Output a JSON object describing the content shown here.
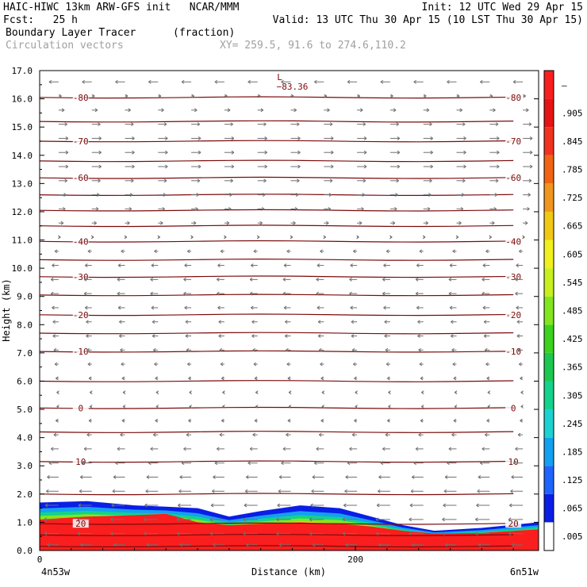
{
  "header": {
    "line1_left": "HAIC-HIWC 13km ARW-GFS init   NCAR/MMM",
    "line1_right": "Init: 12 UTC Wed 29 Apr 15",
    "line2_left": "Fcst:   25 h",
    "line2_right": "Valid: 13 UTC Thu 30 Apr 15 (10 LST Thu 30 Apr 15)",
    "line3_left": "Boundary Layer Tracer",
    "line3_mid": "(fraction)",
    "line4_left": "Circulation vectors",
    "line4_mid": "XY= 259.5, 91.6 to 274.6,110.2"
  },
  "chart_data": {
    "type": "heatmap",
    "title": "Boundary Layer Tracer",
    "units": "(fraction)",
    "xlabel": "Distance (km)",
    "ylabel": "Height (km)",
    "xlim": [
      0,
      316
    ],
    "ylim": [
      0,
      17
    ],
    "x_ticks": [
      "0",
      "200"
    ],
    "x_tick_values": [
      0,
      200
    ],
    "x_end_labels": [
      "4n53w",
      "6n51w"
    ],
    "y_ticks": [
      "0.0",
      "1.0",
      "2.0",
      "3.0",
      "4.0",
      "5.0",
      "6.0",
      "7.0",
      "8.0",
      "9.0",
      "10.0",
      "11.0",
      "12.0",
      "13.0",
      "14.0",
      "15.0",
      "16.0",
      "17.0"
    ],
    "colorbar_labels": [
      ".005",
      ".065",
      ".125",
      ".185",
      ".245",
      ".305",
      ".365",
      ".425",
      ".485",
      ".545",
      ".605",
      ".665",
      ".725",
      ".785",
      ".845",
      ".905",
      "–"
    ],
    "colorbar_colors": [
      "#ffffff",
      "#0a1ee6",
      "#1e64ff",
      "#14a0f0",
      "#1ed2d2",
      "#14d28c",
      "#1ec850",
      "#3cd21e",
      "#82e61e",
      "#c8f01e",
      "#f0f01e",
      "#f0c814",
      "#f0961e",
      "#f06414",
      "#f0321e",
      "#e61414",
      "#fa1e1e"
    ],
    "tracer_profile": [
      {
        "x": 0,
        "top": 1.7,
        "core": 1.1
      },
      {
        "x": 30,
        "top": 1.75,
        "core": 1.2
      },
      {
        "x": 60,
        "top": 1.6,
        "core": 1.25
      },
      {
        "x": 80,
        "top": 1.55,
        "core": 1.3
      },
      {
        "x": 100,
        "top": 1.5,
        "core": 1.0
      },
      {
        "x": 120,
        "top": 1.2,
        "core": 0.9
      },
      {
        "x": 140,
        "top": 1.4,
        "core": 0.95
      },
      {
        "x": 165,
        "top": 1.6,
        "core": 1.0
      },
      {
        "x": 190,
        "top": 1.5,
        "core": 0.95
      },
      {
        "x": 210,
        "top": 1.2,
        "core": 0.85
      },
      {
        "x": 230,
        "top": 0.9,
        "core": 0.7
      },
      {
        "x": 250,
        "top": 0.7,
        "core": 0.6
      },
      {
        "x": 280,
        "top": 0.8,
        "core": 0.62
      },
      {
        "x": 316,
        "top": 1.0,
        "core": 0.75
      }
    ],
    "isotherms": [
      {
        "height": 16.05,
        "label": "-80"
      },
      {
        "height": 15.2,
        "label": ""
      },
      {
        "height": 14.5,
        "label": "-70"
      },
      {
        "height": 13.8,
        "label": ""
      },
      {
        "height": 13.2,
        "label": "-60"
      },
      {
        "height": 12.6,
        "label": ""
      },
      {
        "height": 12.05,
        "label": ""
      },
      {
        "height": 11.5,
        "label": ""
      },
      {
        "height": 10.95,
        "label": "-40"
      },
      {
        "height": 10.3,
        "label": ""
      },
      {
        "height": 9.7,
        "label": "-30"
      },
      {
        "height": 9.05,
        "label": ""
      },
      {
        "height": 8.35,
        "label": "-20"
      },
      {
        "height": 7.7,
        "label": ""
      },
      {
        "height": 7.05,
        "label": "-10"
      },
      {
        "height": 6.0,
        "label": ""
      },
      {
        "height": 5.05,
        "label": "0"
      },
      {
        "height": 4.2,
        "label": ""
      },
      {
        "height": 3.15,
        "label": "10"
      },
      {
        "height": 2.0,
        "label": ""
      },
      {
        "height": 0.95,
        "label": "20"
      },
      {
        "height": 0.55,
        "label": ""
      },
      {
        "height": 0.15,
        "label": ""
      }
    ],
    "min_label": {
      "text": "−83.36",
      "x": 152,
      "height": 16.6,
      "marker": "L"
    },
    "wind_rows": [
      {
        "height": 16.6,
        "u": -1.0
      },
      {
        "height": 16.1,
        "u": 0.3
      },
      {
        "height": 15.6,
        "u": 0.6
      },
      {
        "height": 15.1,
        "u": 0.9
      },
      {
        "height": 14.6,
        "u": 1.0
      },
      {
        "height": 14.1,
        "u": 1.0
      },
      {
        "height": 13.6,
        "u": 1.0
      },
      {
        "height": 13.1,
        "u": 0.9
      },
      {
        "height": 12.6,
        "u": 0.8
      },
      {
        "height": 12.1,
        "u": 0.7
      },
      {
        "height": 11.6,
        "u": 0.5
      },
      {
        "height": 11.1,
        "u": 0.2
      },
      {
        "height": 10.6,
        "u": -0.4
      },
      {
        "height": 10.1,
        "u": -0.7
      },
      {
        "height": 9.6,
        "u": -0.8
      },
      {
        "height": 9.1,
        "u": -0.8
      },
      {
        "height": 8.6,
        "u": -0.7
      },
      {
        "height": 8.1,
        "u": -0.6
      },
      {
        "height": 7.6,
        "u": -0.6
      },
      {
        "height": 7.1,
        "u": -0.5
      },
      {
        "height": 6.6,
        "u": -0.4
      },
      {
        "height": 6.1,
        "u": -0.3
      },
      {
        "height": 5.6,
        "u": -0.2
      },
      {
        "height": 5.1,
        "u": -0.2
      },
      {
        "height": 4.6,
        "u": -0.3
      },
      {
        "height": 4.1,
        "u": -0.5
      },
      {
        "height": 3.6,
        "u": -0.8
      },
      {
        "height": 3.1,
        "u": -1.0
      },
      {
        "height": 2.6,
        "u": -1.2
      },
      {
        "height": 2.1,
        "u": -1.3
      },
      {
        "height": 1.6,
        "u": -1.4
      },
      {
        "height": 1.1,
        "u": -1.5
      },
      {
        "height": 0.6,
        "u": -1.5
      },
      {
        "height": 0.2,
        "u": -1.2
      }
    ],
    "wind_columns_x": [
      12,
      33,
      54,
      75,
      96,
      117,
      138,
      159,
      180,
      201,
      222,
      243,
      264,
      285,
      306
    ],
    "grid": false
  }
}
